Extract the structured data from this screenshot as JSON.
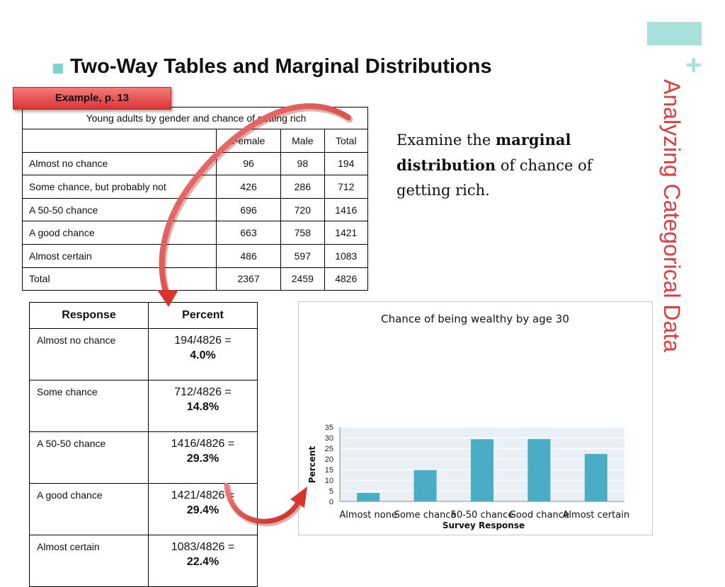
{
  "title": "Two-Way Tables and Marginal Distributions",
  "example_tag": "Example, p. 13",
  "side_title": "Analyzing Categorical Data",
  "two_way_table": {
    "caption": "Young adults by gender and chance of getting rich",
    "headers": [
      "",
      "Female",
      "Male",
      "Total"
    ],
    "rows": [
      [
        "Almost no chance",
        "96",
        "98",
        "194"
      ],
      [
        "Some chance, but probably not",
        "426",
        "286",
        "712"
      ],
      [
        "A 50-50 chance",
        "696",
        "720",
        "1416"
      ],
      [
        "A good chance",
        "663",
        "758",
        "1421"
      ],
      [
        "Almost certain",
        "486",
        "597",
        "1083"
      ],
      [
        "Total",
        "2367",
        "2459",
        "4826"
      ]
    ]
  },
  "examine": {
    "pre": "Examine the ",
    "bold": "marginal distribution",
    "post": " of chance of getting rich."
  },
  "marginal_table": {
    "headers": [
      "Response",
      "Percent"
    ],
    "rows": [
      {
        "response": "Almost no chance",
        "fraction": "194/4826 =",
        "percent": "4.0%"
      },
      {
        "response": "Some chance",
        "fraction": "712/4826 =",
        "percent": "14.8%"
      },
      {
        "response": "A 50-50 chance",
        "fraction": "1416/4826 =",
        "percent": "29.3%"
      },
      {
        "response": "A good chance",
        "fraction": "1421/4826 =",
        "percent": "29.4%"
      },
      {
        "response": "Almost certain",
        "fraction": "1083/4826 =",
        "percent": "22.4%"
      }
    ]
  },
  "colors": {
    "accent": "#a8e0dc",
    "side_title": "#e03c3c",
    "bar": "#4bacc6",
    "arrow": "#d9342b"
  },
  "chart_data": {
    "type": "bar",
    "title": "Chance of being wealthy by age 30",
    "xlabel": "Survey Response",
    "ylabel": "Percent",
    "categories": [
      "Almost none",
      "Some chance",
      "50-50 chance",
      "Good chance",
      "Almost certain"
    ],
    "values": [
      4.0,
      14.8,
      29.3,
      29.4,
      22.4
    ],
    "ylim": [
      0,
      35
    ],
    "yticks": [
      "0",
      "5",
      "10",
      "15",
      "20",
      "25",
      "30",
      "35"
    ],
    "grid": true,
    "legend": "none"
  }
}
